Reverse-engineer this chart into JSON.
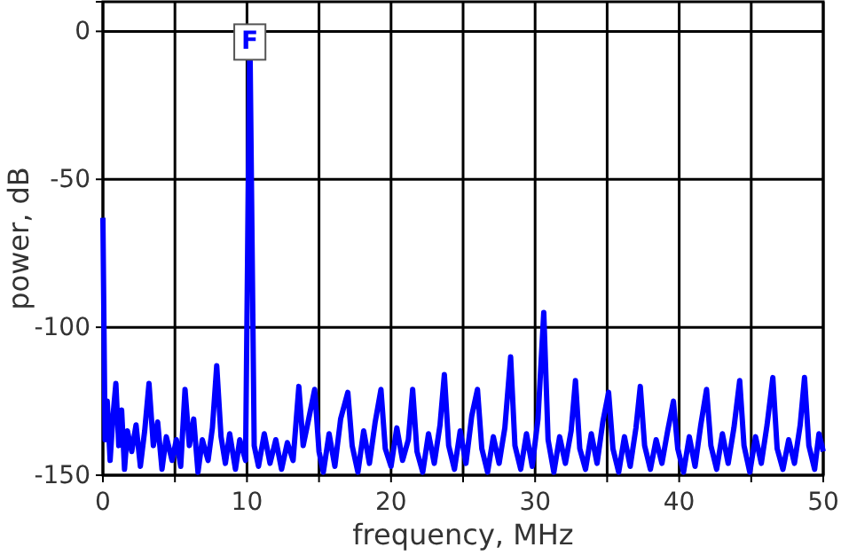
{
  "chart_data": {
    "type": "line",
    "xlabel": "frequency, MHz",
    "ylabel": "power, dB",
    "xlim": [
      0,
      50
    ],
    "ylim": [
      -150,
      10
    ],
    "xticks": [
      0,
      {
        "value": 5,
        "label": null
      },
      10,
      {
        "value": 15,
        "label": null
      },
      20,
      {
        "value": 25,
        "label": null
      },
      30,
      {
        "value": 35,
        "label": null
      },
      40,
      {
        "value": 45,
        "label": null
      },
      50
    ],
    "yticks": [
      -150,
      -100,
      -50,
      0
    ],
    "grid": true,
    "marker": "none",
    "line_style": "solid",
    "annotations": [
      {
        "text": "F",
        "x": 10.2,
        "y": 0
      }
    ],
    "series": [
      {
        "color": "#0000ff",
        "x": [
          0,
          0.15,
          0.3,
          0.5,
          0.7,
          0.9,
          1.1,
          1.3,
          1.5,
          1.7,
          2.0,
          2.3,
          2.6,
          2.9,
          3.2,
          3.5,
          3.8,
          4.1,
          4.4,
          4.8,
          5.1,
          5.4,
          5.7,
          6.0,
          6.3,
          6.6,
          6.9,
          7.3,
          7.6,
          7.9,
          8.2,
          8.5,
          8.8,
          9.2,
          9.5,
          9.9,
          10.2,
          10.5,
          10.8,
          11.2,
          11.6,
          12.0,
          12.4,
          12.8,
          13.2,
          13.6,
          13.9,
          14.2,
          14.7,
          15.0,
          15.3,
          15.7,
          16.1,
          16.5,
          17.0,
          17.3,
          17.7,
          18.1,
          18.5,
          18.9,
          19.3,
          19.6,
          20.0,
          20.4,
          20.8,
          21.2,
          21.5,
          21.8,
          22.2,
          22.6,
          23.0,
          23.4,
          23.7,
          24.0,
          24.4,
          24.8,
          25.2,
          25.6,
          26.0,
          26.3,
          26.7,
          27.1,
          27.5,
          27.9,
          28.3,
          28.6,
          29.0,
          29.4,
          29.8,
          30.2,
          30.6,
          30.9,
          31.3,
          31.7,
          32.1,
          32.5,
          32.8,
          33.1,
          33.5,
          33.9,
          34.3,
          34.7,
          35.1,
          35.4,
          35.8,
          36.2,
          36.6,
          37.0,
          37.3,
          37.6,
          38.0,
          38.4,
          38.8,
          39.2,
          39.6,
          39.9,
          40.3,
          40.7,
          41.1,
          41.5,
          41.9,
          42.2,
          42.6,
          43.0,
          43.4,
          43.8,
          44.2,
          44.5,
          44.9,
          45.3,
          45.7,
          46.1,
          46.5,
          46.8,
          47.2,
          47.6,
          48.0,
          48.4,
          48.7,
          49.0,
          49.4,
          49.7,
          50
        ],
        "values": [
          -63,
          -138,
          -125,
          -145,
          -130,
          -119,
          -140,
          -128,
          -148,
          -135,
          -142,
          -133,
          -147,
          -135,
          -119,
          -140,
          -132,
          -148,
          -137,
          -145,
          -138,
          -147,
          -121,
          -140,
          -131,
          -149,
          -138,
          -145,
          -134,
          -113,
          -137,
          -146,
          -136,
          -148,
          -138,
          -145,
          0,
          -140,
          -147,
          -136,
          -146,
          -138,
          -148,
          -139,
          -145,
          -120,
          -140,
          -133,
          -121,
          -142,
          -149,
          -136,
          -147,
          -131,
          -122,
          -140,
          -149,
          -135,
          -146,
          -132,
          -121,
          -141,
          -147,
          -134,
          -145,
          -138,
          -121,
          -142,
          -149,
          -136,
          -146,
          -133,
          -116,
          -140,
          -148,
          -135,
          -146,
          -130,
          -121,
          -141,
          -149,
          -137,
          -146,
          -134,
          -110,
          -140,
          -148,
          -136,
          -147,
          -131,
          -95,
          -138,
          -149,
          -137,
          -146,
          -135,
          -118,
          -141,
          -148,
          -136,
          -146,
          -132,
          -122,
          -141,
          -149,
          -137,
          -147,
          -134,
          -120,
          -140,
          -148,
          -138,
          -146,
          -135,
          -125,
          -141,
          -149,
          -137,
          -147,
          -133,
          -121,
          -140,
          -148,
          -136,
          -146,
          -134,
          -118,
          -140,
          -149,
          -137,
          -146,
          -133,
          -117,
          -141,
          -148,
          -138,
          -146,
          -133,
          -117,
          -140,
          -148,
          -136,
          -142
        ]
      }
    ]
  }
}
